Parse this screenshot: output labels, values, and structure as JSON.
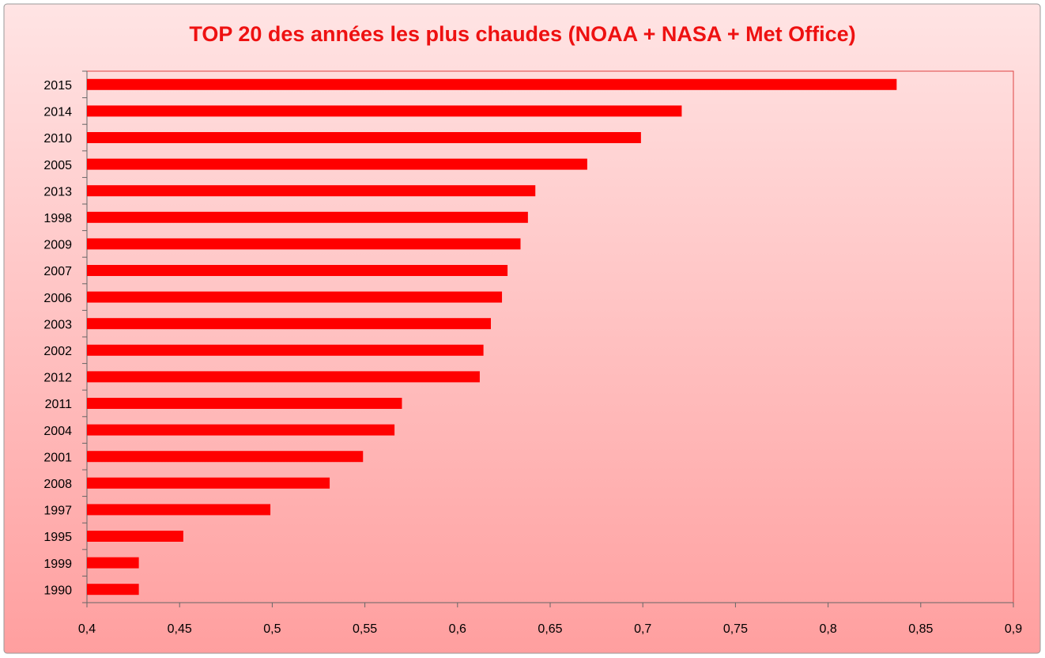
{
  "chart_data": {
    "type": "bar",
    "orientation": "horizontal",
    "title": "TOP 20 des années les plus chaudes (NOAA + NASA + Met Office)",
    "categories": [
      "2015",
      "2014",
      "2010",
      "2005",
      "2013",
      "1998",
      "2009",
      "2007",
      "2006",
      "2003",
      "2002",
      "2012",
      "2011",
      "2004",
      "2001",
      "2008",
      "1997",
      "1995",
      "1999",
      "1990"
    ],
    "values": [
      0.837,
      0.721,
      0.699,
      0.67,
      0.642,
      0.638,
      0.634,
      0.627,
      0.624,
      0.618,
      0.614,
      0.612,
      0.57,
      0.566,
      0.549,
      0.531,
      0.499,
      0.452,
      0.428,
      0.428
    ],
    "color": "#ff0000",
    "xlim": [
      0.4,
      0.9
    ],
    "xticks": [
      {
        "value": 0.4,
        "label": "0,4"
      },
      {
        "value": 0.45,
        "label": "0,45"
      },
      {
        "value": 0.5,
        "label": "0,5"
      },
      {
        "value": 0.55,
        "label": "0,55"
      },
      {
        "value": 0.6,
        "label": "0,6"
      },
      {
        "value": 0.65,
        "label": "0,65"
      },
      {
        "value": 0.7,
        "label": "0,7"
      },
      {
        "value": 0.75,
        "label": "0,75"
      },
      {
        "value": 0.8,
        "label": "0,8"
      },
      {
        "value": 0.85,
        "label": "0,85"
      },
      {
        "value": 0.9,
        "label": "0,9"
      }
    ],
    "grid": false
  }
}
